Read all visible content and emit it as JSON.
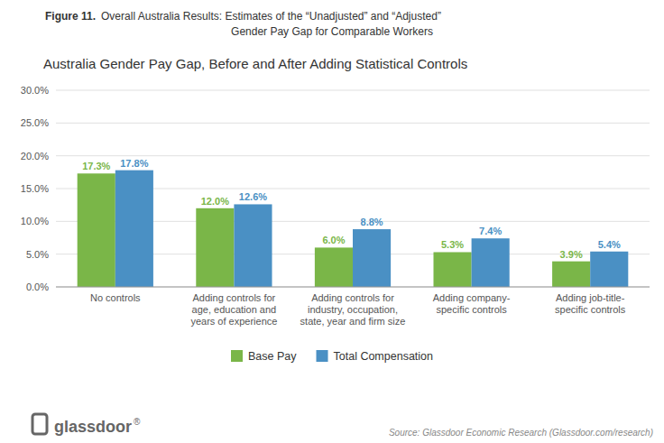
{
  "chart_data": {
    "type": "bar",
    "title": "Australia Gender Pay Gap, Before and After Adding Statistical Controls",
    "subtitle": [
      "Overall Australia Results: Estimates of the “Unadjusted” and “Adjusted”",
      "Gender Pay Gap for Comparable Workers"
    ],
    "annotations": [
      "Figure 11.",
      "Source: Glassdoor Economic Research (Glassdoor.com/research)",
      "glassdoor",
      "®"
    ],
    "categories": [
      "No controls",
      "Adding controls for\nage, education and\nyears of experience",
      "Adding controls for\nindustry, occupation,\nstate, year and firm size",
      "Adding company-\nspecific controls",
      "Adding job-title-\nspecific controls"
    ],
    "series": [
      {
        "name": "Base Pay",
        "color": "#7ab648",
        "values": [
          17.3,
          12.0,
          6.0,
          5.3,
          3.9
        ],
        "value_labels": [
          "17.3%",
          "12.0%",
          "6.0%",
          "5.3%",
          "3.9%"
        ]
      },
      {
        "name": "Total Compensation",
        "color": "#4a90c4",
        "values": [
          17.8,
          12.6,
          8.8,
          7.4,
          5.4
        ],
        "value_labels": [
          "17.8%",
          "12.6%",
          "8.8%",
          "7.4%",
          "5.4%"
        ]
      }
    ],
    "ylim": [
      0,
      30
    ],
    "yticks": [
      {
        "value": 0,
        "label": "0.0%"
      },
      {
        "value": 5,
        "label": "5.0%"
      },
      {
        "value": 10,
        "label": "10.0%"
      },
      {
        "value": 15,
        "label": "15.0%"
      },
      {
        "value": 20,
        "label": "20.0%"
      },
      {
        "value": 25,
        "label": "25.0%"
      },
      {
        "value": 30,
        "label": "30.0%"
      }
    ],
    "grid": true,
    "legend": "bottom",
    "data_labels": true
  }
}
